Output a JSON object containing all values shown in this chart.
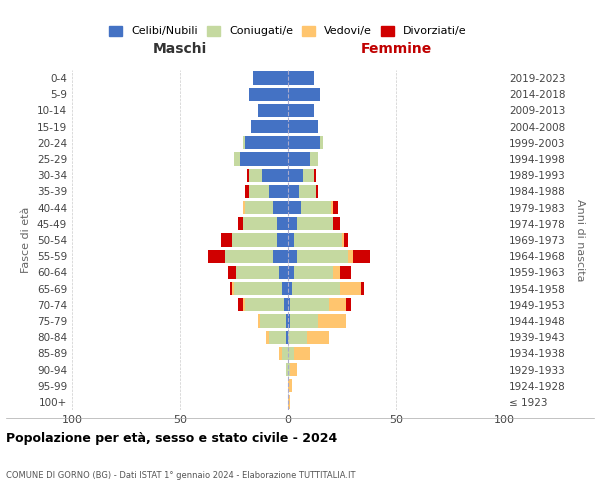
{
  "age_groups": [
    "100+",
    "95-99",
    "90-94",
    "85-89",
    "80-84",
    "75-79",
    "70-74",
    "65-69",
    "60-64",
    "55-59",
    "50-54",
    "45-49",
    "40-44",
    "35-39",
    "30-34",
    "25-29",
    "20-24",
    "15-19",
    "10-14",
    "5-9",
    "0-4"
  ],
  "birth_years": [
    "≤ 1923",
    "1924-1928",
    "1929-1933",
    "1934-1938",
    "1939-1943",
    "1944-1948",
    "1949-1953",
    "1954-1958",
    "1959-1963",
    "1964-1968",
    "1969-1973",
    "1974-1978",
    "1979-1983",
    "1984-1988",
    "1989-1993",
    "1994-1998",
    "1999-2003",
    "2004-2008",
    "2009-2013",
    "2014-2018",
    "2019-2023"
  ],
  "colors": {
    "celibi": "#4472c4",
    "coniugati": "#c5d9a0",
    "vedovi": "#ffc56e",
    "divorziati": "#d00000"
  },
  "maschi": {
    "celibi": [
      0,
      0,
      0,
      0,
      1,
      1,
      2,
      3,
      4,
      7,
      5,
      5,
      7,
      9,
      12,
      22,
      20,
      17,
      14,
      18,
      16
    ],
    "coniugati": [
      0,
      0,
      1,
      3,
      8,
      12,
      18,
      22,
      20,
      22,
      21,
      16,
      13,
      9,
      6,
      3,
      1,
      0,
      0,
      0,
      0
    ],
    "vedovi": [
      0,
      0,
      0,
      1,
      1,
      1,
      1,
      1,
      0,
      0,
      0,
      0,
      1,
      0,
      0,
      0,
      0,
      0,
      0,
      0,
      0
    ],
    "divorziati": [
      0,
      0,
      0,
      0,
      0,
      0,
      2,
      1,
      4,
      8,
      5,
      2,
      0,
      2,
      1,
      0,
      0,
      0,
      0,
      0,
      0
    ]
  },
  "femmine": {
    "celibi": [
      0,
      0,
      0,
      0,
      0,
      1,
      1,
      2,
      3,
      4,
      3,
      4,
      6,
      5,
      7,
      10,
      15,
      14,
      12,
      15,
      12
    ],
    "coniugati": [
      0,
      0,
      1,
      3,
      9,
      13,
      18,
      22,
      18,
      24,
      22,
      17,
      14,
      8,
      5,
      4,
      1,
      0,
      0,
      0,
      0
    ],
    "vedovi": [
      1,
      2,
      3,
      7,
      10,
      13,
      8,
      10,
      3,
      2,
      1,
      0,
      1,
      0,
      0,
      0,
      0,
      0,
      0,
      0,
      0
    ],
    "divorziati": [
      0,
      0,
      0,
      0,
      0,
      0,
      2,
      1,
      5,
      8,
      2,
      3,
      2,
      1,
      1,
      0,
      0,
      0,
      0,
      0,
      0
    ]
  },
  "xlim": 100,
  "title": "Popolazione per età, sesso e stato civile - 2024",
  "subtitle": "COMUNE DI GORNO (BG) - Dati ISTAT 1° gennaio 2024 - Elaborazione TUTTITALIA.IT",
  "xlabel_left": "Maschi",
  "xlabel_right": "Femmine",
  "ylabel_left": "Fasce di età",
  "ylabel_right": "Anni di nascita",
  "legend_labels": [
    "Celibi/Nubili",
    "Coniugati/e",
    "Vedovi/e",
    "Divorziati/e"
  ],
  "bg_color": "#ffffff",
  "grid_color": "#cccccc"
}
